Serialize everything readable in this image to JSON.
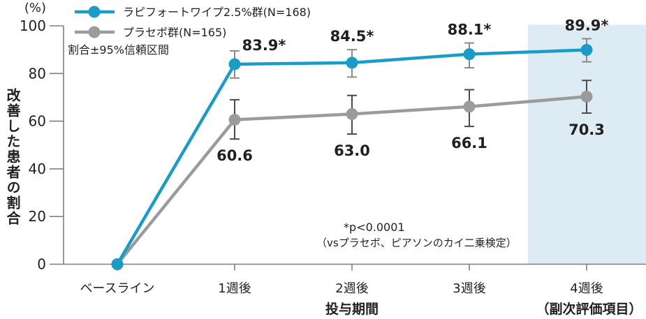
{
  "colors": {
    "treatment": "#1A9CC9",
    "placebo": "#9B9B9B",
    "highlight_band": "#DDEBF4",
    "axis": "#7E7E7E",
    "text": "#231F20",
    "error_bar_treatment": "#8A8A8A",
    "error_bar_placebo": "#4C4947"
  },
  "legend": {
    "items": [
      {
        "key": "treatment",
        "label": "ラピフォートワイプ2.5%群(N=168)"
      },
      {
        "key": "placebo",
        "label": "プラセボ群(N=165)"
      }
    ],
    "note": "割合±95%信頼区間"
  },
  "chart_data": {
    "type": "line",
    "unit_label": "(%)",
    "ylabel": "改善した患者の割合",
    "xlabel": "投与期間",
    "x_secondary_label": "（副次評価項目）",
    "categories": [
      "ベースライン",
      "1週後",
      "2週後",
      "3週後",
      "4週後"
    ],
    "ylim": [
      0,
      100
    ],
    "yticks": [
      0,
      20,
      40,
      60,
      80,
      100
    ],
    "grid": false,
    "legend_position": "top-left",
    "series": [
      {
        "name": "プラセボ群(N=165)",
        "key": "placebo",
        "values": [
          0,
          60.6,
          63.0,
          66.1,
          70.3
        ],
        "point_labels": [
          "",
          "60.6",
          "63.0",
          "66.1",
          "70.3"
        ],
        "ci_upper": [
          null,
          69.0,
          70.8,
          73.2,
          77.1
        ],
        "ci_lower": [
          null,
          52.5,
          54.6,
          57.8,
          63.4
        ]
      },
      {
        "name": "ラピフォートワイプ2.5%群(N=168)",
        "key": "treatment",
        "values": [
          0,
          83.9,
          84.5,
          88.1,
          89.9
        ],
        "point_labels": [
          "",
          "83.9*",
          "84.5*",
          "88.1*",
          "89.9*"
        ],
        "ci_upper": [
          null,
          89.5,
          90.0,
          92.8,
          94.6
        ],
        "ci_lower": [
          null,
          78.1,
          78.5,
          82.4,
          84.9
        ]
      }
    ],
    "highlight_region": {
      "category": "4週後",
      "label": "（副次評価項目）"
    },
    "annotation": [
      "*p<0.0001",
      "（vsプラセボ、ピアソンのカイ二乗検定）"
    ]
  }
}
